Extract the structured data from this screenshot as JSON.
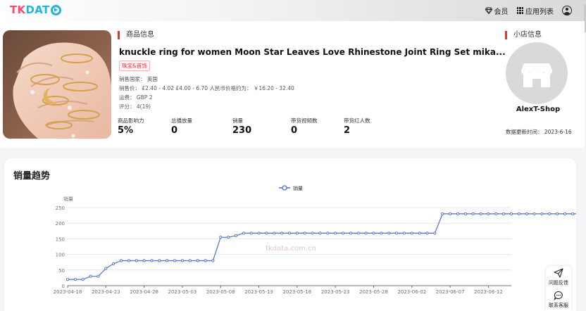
{
  "header": {
    "logo": {
      "tk": "TK",
      "da": "DAT"
    },
    "membership_label": "会员",
    "apps_label": "应用列表",
    "icons": [
      "diamond-icon",
      "grid-icon",
      "user-icon"
    ]
  },
  "product": {
    "section_title": "商品信息",
    "title": "knuckle ring for women Moon Star Leaves Love Rhinestone Joint Ring Set mika...",
    "tag": "珠宝&首饰",
    "country": "销售国家： 英国",
    "price": "销售价： £2.40 - 4.02   £4.00 - 6.70     人民币价格约为： ￥16.20 - 32.40",
    "shipping": "运费： GBP 2",
    "rating": "评分： 4(19)",
    "stats": [
      {
        "label": "商品影响力",
        "value": "5%"
      },
      {
        "label": "总播放量",
        "value": "0"
      },
      {
        "label": "销量",
        "value": "230"
      },
      {
        "label": "带货视频数",
        "value": "0"
      },
      {
        "label": "带货红人数",
        "value": "2"
      }
    ]
  },
  "shop": {
    "section_title": "小店信息",
    "name": "AlexT-Shop",
    "update_time": "数据更新时间： 2023-6-16"
  },
  "chart": {
    "section_title": "销量趋势",
    "watermark": "tkdata.com.cn"
  },
  "chart_data": {
    "type": "line",
    "title": "",
    "legend": [
      "销量"
    ],
    "legend_position": "top-center",
    "ylabel": "销量",
    "xlabel": "",
    "ylim": [
      0,
      250
    ],
    "y_ticks": [
      0,
      50,
      100,
      150,
      200,
      250
    ],
    "grid": true,
    "color": "#5470c6",
    "x_tick_labels": [
      "2023-04-18",
      "2023-04-23",
      "2023-04-28",
      "2023-05-03",
      "2023-05-08",
      "2023-05-13",
      "2023-05-18",
      "2023-05-23",
      "2023-05-28",
      "2023-06-02",
      "2023-06-07",
      "2023-06-12"
    ],
    "x_start": "2023-04-18",
    "x_end": "2023-06-15",
    "series": [
      {
        "name": "销量",
        "values": [
          20,
          20,
          20,
          30,
          30,
          55,
          70,
          80,
          80,
          80,
          80,
          80,
          80,
          80,
          80,
          80,
          80,
          80,
          80,
          80,
          155,
          155,
          160,
          168,
          168,
          168,
          168,
          168,
          168,
          168,
          168,
          168,
          168,
          168,
          168,
          168,
          168,
          168,
          168,
          168,
          168,
          168,
          168,
          168,
          168,
          168,
          168,
          168,
          168,
          230,
          230,
          230,
          230,
          230,
          230,
          230,
          230,
          230,
          230,
          230,
          230,
          230,
          230,
          230,
          230,
          230,
          230,
          230
        ]
      }
    ]
  },
  "side_widget": {
    "feedback_label": "问题反馈",
    "service_label": "联系客服"
  }
}
